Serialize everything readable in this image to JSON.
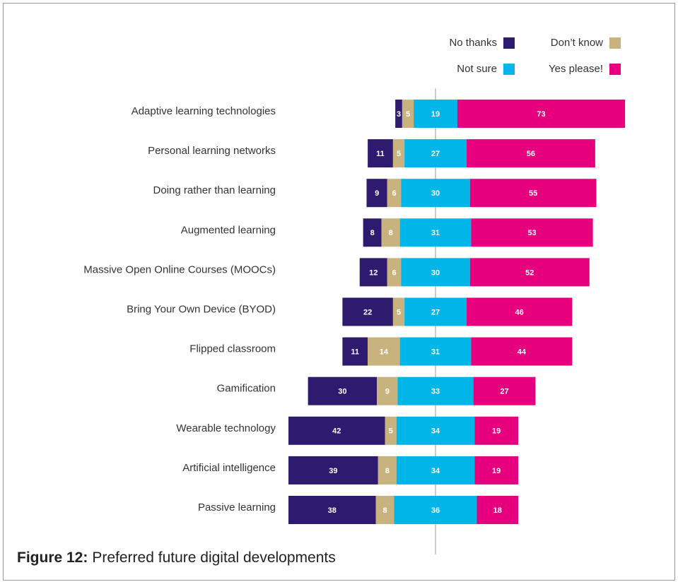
{
  "chart_data": {
    "type": "bar",
    "orientation": "horizontal",
    "stacked": "diverging",
    "figure_label": "Figure 12:",
    "title": "Preferred future digital developments",
    "categories": [
      "Adaptive learning technologies",
      "Personal learning networks",
      "Doing rather than learning",
      "Augmented learning",
      "Massive Open Online Courses (MOOCs)",
      "Bring Your Own Device (BYOD)",
      "Flipped classroom",
      "Gamification",
      "Wearable technology",
      "Artificial intelligence",
      "Passive learning"
    ],
    "series": [
      {
        "name": "No thanks",
        "color": "#2e1a6e",
        "values": [
          3,
          11,
          9,
          8,
          12,
          22,
          11,
          30,
          42,
          39,
          38
        ]
      },
      {
        "name": "Don’t know",
        "color": "#c8b27e",
        "values": [
          5,
          5,
          6,
          8,
          6,
          5,
          14,
          9,
          5,
          8,
          8
        ]
      },
      {
        "name": "Not sure",
        "color": "#00b5e8",
        "values": [
          19,
          27,
          30,
          31,
          30,
          27,
          31,
          33,
          34,
          34,
          36
        ]
      },
      {
        "name": "Yes please!",
        "color": "#e6007e",
        "values": [
          73,
          56,
          55,
          53,
          52,
          46,
          44,
          27,
          19,
          19,
          18
        ]
      }
    ],
    "center_series": 2
  }
}
